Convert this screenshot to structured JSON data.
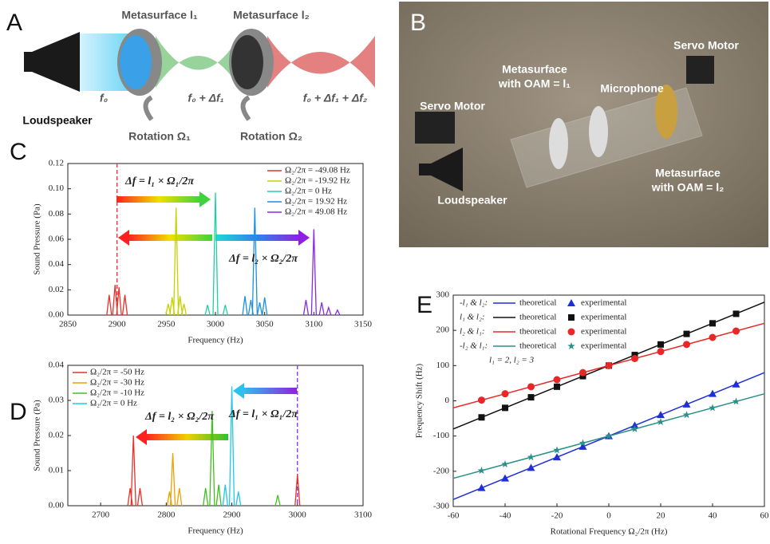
{
  "panel_a": {
    "label": "A",
    "metasurface_1": "Metasurface l₁",
    "metasurface_2": "Metasurface l₂",
    "freq_0": "f₀",
    "freq_1": "f₀ + Δf₁",
    "freq_2": "f₀ + Δf₁ + Δf₂",
    "loudspeaker": "Loudspeaker",
    "rotation_1": "Rotation Ω₁",
    "rotation_2": "Rotation Ω₂"
  },
  "panel_b": {
    "label": "B",
    "servo_right": "Servo Motor",
    "servo_left": "Servo Motor",
    "metasurface_1": [
      "Metasurface",
      "with OAM = l₁"
    ],
    "microphone": "Microphone",
    "loudspeaker": "Loudspeaker",
    "metasurface_2": [
      "Metasurface",
      "with OAM = l₂"
    ]
  },
  "chart_data": [
    {
      "type": "line",
      "panel_label": "C",
      "xlabel": "Frequency (Hz)",
      "ylabel": "Sound Pressure (Pa)",
      "xlim": [
        2850,
        3150
      ],
      "xticks": [
        2850,
        2900,
        2950,
        3000,
        3050,
        3100,
        3150
      ],
      "ylim": [
        0,
        0.12
      ],
      "yticks": [
        {
          "value": 0,
          "label": "0.00"
        },
        0.02,
        0.04,
        0.06,
        0.08,
        {
          "value": 0.1,
          "label": "0.10"
        },
        0.12
      ],
      "legend": "upper right",
      "reference_x": 2900,
      "reference_color": "#e8312a",
      "annotations": [
        {
          "text": "Δf = l₁ × Ω₁/2π"
        },
        {
          "text": "Δf = l₂ × Ω₂/2π"
        }
      ],
      "series": [
        {
          "name": "Ω₂/2π = -49.08 Hz",
          "color": "#e8312a",
          "x": [
            2892,
            2898,
            2902,
            2908
          ],
          "values": [
            0.016,
            0.024,
            0.022,
            0.016
          ]
        },
        {
          "name": "Ω₂/2π = -19.92 Hz",
          "color": "#c8d000",
          "x": [
            2952,
            2956,
            2960,
            2964,
            2968
          ],
          "values": [
            0.009,
            0.014,
            0.085,
            0.015,
            0.009
          ]
        },
        {
          "name": "Ω₂/2π = 0 Hz",
          "color": "#20d0a0",
          "x": [
            2992,
            3000,
            3010
          ],
          "values": [
            0.008,
            0.097,
            0.008
          ]
        },
        {
          "name": "Ω₂/2π = 19.92 Hz",
          "color": "#1e90e0",
          "x": [
            3030,
            3036,
            3040,
            3045,
            3050
          ],
          "values": [
            0.015,
            0.012,
            0.085,
            0.01,
            0.014
          ]
        },
        {
          "name": "Ω₂/2π = 49.08 Hz",
          "color": "#8a2be2",
          "x": [
            3092,
            3100,
            3108,
            3115,
            3124
          ],
          "values": [
            0.012,
            0.068,
            0.01,
            0.006,
            0.004
          ]
        }
      ]
    },
    {
      "type": "line",
      "panel_label": "D",
      "xlabel": "Frequency (Hz)",
      "ylabel": "Sound Pressure (Pa)",
      "xlim": [
        2650,
        3100
      ],
      "xticks": [
        2700,
        2800,
        2900,
        3000,
        3100
      ],
      "ylim": [
        0,
        0.04
      ],
      "yticks": [
        {
          "value": 0,
          "label": "0.00"
        },
        0.01,
        0.02,
        0.03,
        0.04
      ],
      "legend": "upper left",
      "reference_x": 3000,
      "reference_color": "#8a2be2",
      "annotations": [
        {
          "text": "Δf = l₂ × Ω₂/2π"
        },
        {
          "text": "Δf = l₁ × Ω₁/2π"
        }
      ],
      "series": [
        {
          "name": "Ω₂/2π = -50 Hz",
          "color": "#e8312a",
          "x": [
            2745,
            2750,
            2760,
            3000
          ],
          "values": [
            0.005,
            0.02,
            0.005,
            0.009
          ]
        },
        {
          "name": "Ω₂/2π = -30 Hz",
          "color": "#f0a000",
          "x": [
            2805,
            2810,
            2820
          ],
          "values": [
            0.004,
            0.015,
            0.005
          ]
        },
        {
          "name": "Ω₂/2π = -10 Hz",
          "color": "#40c020",
          "x": [
            2860,
            2870,
            2880,
            2970
          ],
          "values": [
            0.005,
            0.027,
            0.006,
            0.003
          ]
        },
        {
          "name": "Ω₂/2π = 0 Hz",
          "color": "#20c8e8",
          "x": [
            2890,
            2900,
            2910
          ],
          "values": [
            0.006,
            0.034,
            0.004
          ]
        }
      ]
    },
    {
      "type": "scatter",
      "panel_label": "E",
      "xlabel": "Rotational Frequency Ω₂/2π (Hz)",
      "ylabel": "Frequency Shift (Hz)",
      "xlim": [
        -60,
        60
      ],
      "xticks": [
        -60,
        -40,
        -20,
        0,
        20,
        40,
        60
      ],
      "ylim": [
        -300,
        300
      ],
      "yticks": [
        -300,
        -200,
        -100,
        0,
        100,
        200,
        300
      ],
      "legend": "upper left",
      "annotation": "l₁ = 2, l₂ = 3",
      "series": [
        {
          "name": "-l₁ & l₂:",
          "color": "#1f2fd8",
          "marker": "triangle",
          "theoretical": {
            "label": "theoretical",
            "x": [
              -60,
              60
            ],
            "values": [
              -280,
              80
            ]
          },
          "experimental": {
            "label": "experimental",
            "x": [
              -49.08,
              -40,
              -30,
              -20,
              -10,
              0,
              10,
              20,
              30,
              40,
              49.08
            ],
            "values": [
              -247,
              -220,
              -190,
              -160,
              -130,
              -100,
              -70,
              -40,
              -10,
              20,
              47
            ]
          }
        },
        {
          "name": "l₁ & l₂:",
          "color": "#111111",
          "marker": "square",
          "theoretical": {
            "label": "theoretical",
            "x": [
              -60,
              60
            ],
            "values": [
              -80,
              280
            ]
          },
          "experimental": {
            "label": "experimental",
            "x": [
              -49.08,
              -40,
              -30,
              -20,
              -10,
              0,
              10,
              20,
              30,
              40,
              49.08
            ],
            "values": [
              -47,
              -20,
              10,
              40,
              70,
              100,
              130,
              160,
              190,
              220,
              247
            ]
          }
        },
        {
          "name": "l₂ & l₁:",
          "color": "#e82828",
          "marker": "circle",
          "theoretical": {
            "label": "theoretical",
            "x": [
              -60,
              60
            ],
            "values": [
              -20,
              220
            ]
          },
          "experimental": {
            "label": "experimental",
            "x": [
              -49.08,
              -40,
              -30,
              -20,
              -10,
              0,
              10,
              20,
              30,
              40,
              49.08
            ],
            "values": [
              2,
              20,
              40,
              60,
              80,
              100,
              120,
              140,
              160,
              180,
              198
            ]
          }
        },
        {
          "name": "-l₂ & l₁:",
          "color": "#2a9088",
          "marker": "star",
          "theoretical": {
            "label": "theoretical",
            "x": [
              -60,
              60
            ],
            "values": [
              -220,
              20
            ]
          },
          "experimental": {
            "label": "experimental",
            "x": [
              -49.08,
              -40,
              -30,
              -20,
              -10,
              0,
              10,
              20,
              30,
              40,
              49.08
            ],
            "values": [
              -198,
              -180,
              -160,
              -140,
              -120,
              -100,
              -80,
              -60,
              -40,
              -20,
              -2
            ]
          }
        }
      ]
    }
  ]
}
